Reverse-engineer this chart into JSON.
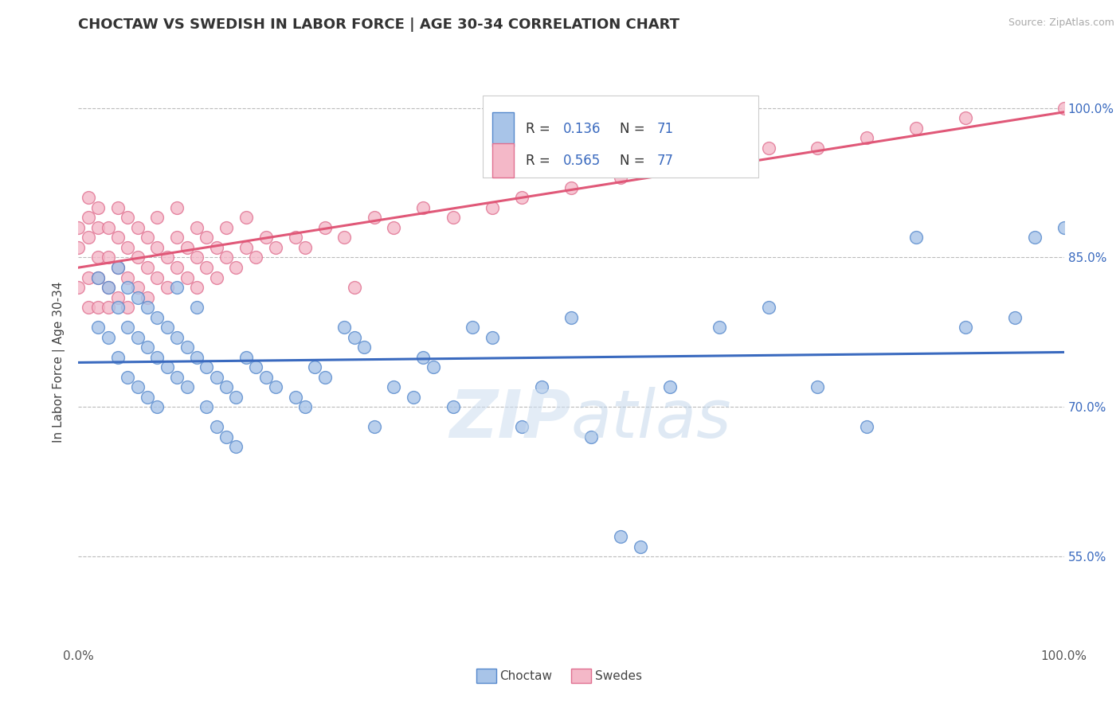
{
  "title": "CHOCTAW VS SWEDISH IN LABOR FORCE | AGE 30-34 CORRELATION CHART",
  "source_text": "Source: ZipAtlas.com",
  "ylabel": "In Labor Force | Age 30-34",
  "xlim": [
    0.0,
    1.0
  ],
  "ylim": [
    0.46,
    1.03
  ],
  "yticks": [
    0.55,
    0.7,
    0.85,
    1.0
  ],
  "ytick_labels": [
    "55.0%",
    "70.0%",
    "85.0%",
    "100.0%"
  ],
  "blue_R": "0.136",
  "blue_N": "71",
  "pink_R": "0.565",
  "pink_N": "77",
  "blue_line_color": "#3a6abf",
  "pink_line_color": "#e05878",
  "blue_dot_face": "#a8c4e8",
  "blue_dot_edge": "#5588cc",
  "pink_dot_face": "#f4b8c8",
  "pink_dot_edge": "#e07090",
  "blue_label_color": "#3a6abf",
  "choctaw_x": [
    0.02,
    0.02,
    0.03,
    0.03,
    0.04,
    0.04,
    0.04,
    0.05,
    0.05,
    0.05,
    0.06,
    0.06,
    0.06,
    0.07,
    0.07,
    0.07,
    0.08,
    0.08,
    0.08,
    0.09,
    0.09,
    0.1,
    0.1,
    0.1,
    0.11,
    0.11,
    0.12,
    0.12,
    0.13,
    0.13,
    0.14,
    0.14,
    0.15,
    0.15,
    0.16,
    0.16,
    0.17,
    0.18,
    0.19,
    0.2,
    0.22,
    0.23,
    0.24,
    0.25,
    0.27,
    0.28,
    0.29,
    0.3,
    0.32,
    0.34,
    0.35,
    0.36,
    0.38,
    0.4,
    0.42,
    0.45,
    0.47,
    0.5,
    0.52,
    0.55,
    0.57,
    0.6,
    0.65,
    0.7,
    0.75,
    0.8,
    0.85,
    0.9,
    0.95,
    0.97,
    1.0
  ],
  "choctaw_y": [
    0.78,
    0.83,
    0.82,
    0.77,
    0.84,
    0.8,
    0.75,
    0.82,
    0.78,
    0.73,
    0.81,
    0.77,
    0.72,
    0.8,
    0.76,
    0.71,
    0.79,
    0.75,
    0.7,
    0.78,
    0.74,
    0.82,
    0.77,
    0.73,
    0.76,
    0.72,
    0.8,
    0.75,
    0.74,
    0.7,
    0.73,
    0.68,
    0.72,
    0.67,
    0.71,
    0.66,
    0.75,
    0.74,
    0.73,
    0.72,
    0.71,
    0.7,
    0.74,
    0.73,
    0.78,
    0.77,
    0.76,
    0.68,
    0.72,
    0.71,
    0.75,
    0.74,
    0.7,
    0.78,
    0.77,
    0.68,
    0.72,
    0.79,
    0.67,
    0.57,
    0.56,
    0.72,
    0.78,
    0.8,
    0.72,
    0.68,
    0.87,
    0.78,
    0.79,
    0.87,
    0.88
  ],
  "swedes_x": [
    0.0,
    0.0,
    0.0,
    0.01,
    0.01,
    0.01,
    0.01,
    0.01,
    0.02,
    0.02,
    0.02,
    0.02,
    0.02,
    0.03,
    0.03,
    0.03,
    0.03,
    0.04,
    0.04,
    0.04,
    0.04,
    0.05,
    0.05,
    0.05,
    0.05,
    0.06,
    0.06,
    0.06,
    0.07,
    0.07,
    0.07,
    0.08,
    0.08,
    0.08,
    0.09,
    0.09,
    0.1,
    0.1,
    0.1,
    0.11,
    0.11,
    0.12,
    0.12,
    0.12,
    0.13,
    0.13,
    0.14,
    0.14,
    0.15,
    0.15,
    0.16,
    0.17,
    0.17,
    0.18,
    0.19,
    0.2,
    0.22,
    0.23,
    0.25,
    0.27,
    0.28,
    0.3,
    0.32,
    0.35,
    0.38,
    0.42,
    0.45,
    0.5,
    0.55,
    0.6,
    0.65,
    0.7,
    0.75,
    0.8,
    0.85,
    0.9,
    1.0
  ],
  "swedes_y": [
    0.82,
    0.86,
    0.88,
    0.8,
    0.83,
    0.87,
    0.89,
    0.91,
    0.8,
    0.83,
    0.85,
    0.88,
    0.9,
    0.8,
    0.82,
    0.85,
    0.88,
    0.81,
    0.84,
    0.87,
    0.9,
    0.8,
    0.83,
    0.86,
    0.89,
    0.82,
    0.85,
    0.88,
    0.81,
    0.84,
    0.87,
    0.83,
    0.86,
    0.89,
    0.82,
    0.85,
    0.84,
    0.87,
    0.9,
    0.83,
    0.86,
    0.82,
    0.85,
    0.88,
    0.84,
    0.87,
    0.83,
    0.86,
    0.85,
    0.88,
    0.84,
    0.86,
    0.89,
    0.85,
    0.87,
    0.86,
    0.87,
    0.86,
    0.88,
    0.87,
    0.82,
    0.89,
    0.88,
    0.9,
    0.89,
    0.9,
    0.91,
    0.92,
    0.93,
    0.94,
    0.95,
    0.96,
    0.96,
    0.97,
    0.98,
    0.99,
    1.0
  ]
}
